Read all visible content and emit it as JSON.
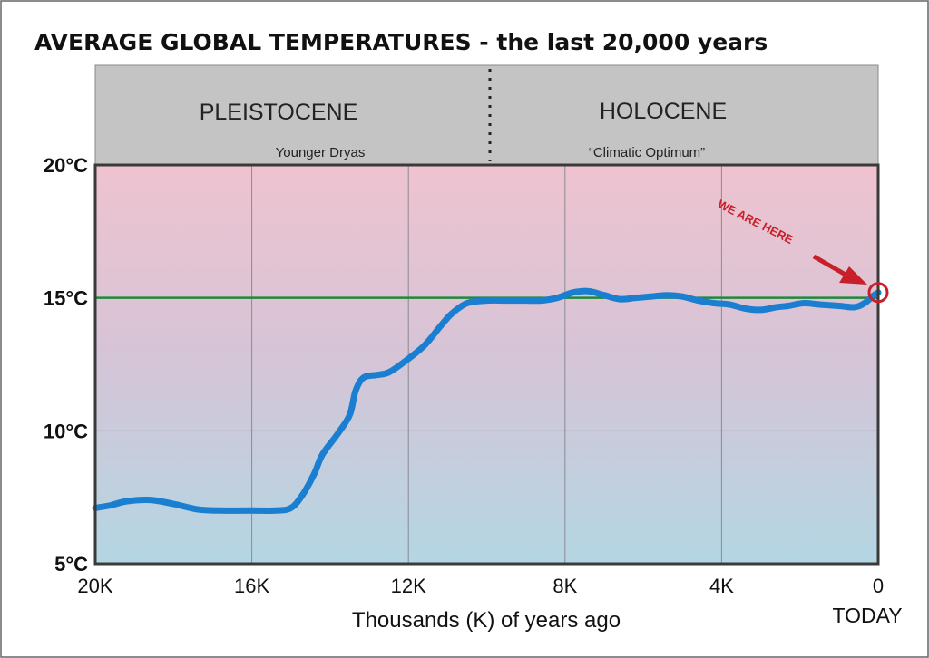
{
  "chart_data": {
    "type": "line",
    "title": "AVERAGE GLOBAL TEMPERATURES - the last 20,000 years",
    "xlabel": "Thousands (K) of years ago",
    "ylabel": "",
    "xlim": [
      20,
      0
    ],
    "ylim": [
      5,
      20
    ],
    "x_ticks": [
      20,
      16,
      12,
      8,
      4,
      0
    ],
    "x_tick_labels": [
      "20K",
      "16K",
      "12K",
      "8K",
      "4K",
      "0"
    ],
    "x_end_label": "TODAY",
    "y_ticks": [
      5,
      10,
      15,
      20
    ],
    "y_tick_labels": [
      "5°C",
      "10°C",
      "15°C",
      "20°C"
    ],
    "grid": true,
    "eras": [
      {
        "label": "PLEISTOCENE",
        "note": "Younger Dryas"
      },
      {
        "label": "HOLOCENE",
        "note": "“Climatic Optimum”"
      }
    ],
    "era_boundary_x": 10,
    "reference_line": {
      "y": 15,
      "color": "#1e8a3a"
    },
    "series": [
      {
        "color": "#1a7fd0",
        "points": [
          [
            20,
            7.1
          ],
          [
            19.6,
            7.2
          ],
          [
            19.2,
            7.35
          ],
          [
            18.6,
            7.4
          ],
          [
            18,
            7.25
          ],
          [
            17.4,
            7.05
          ],
          [
            16.8,
            7.0
          ],
          [
            16,
            7.0
          ],
          [
            15.4,
            7.0
          ],
          [
            15,
            7.1
          ],
          [
            14.7,
            7.6
          ],
          [
            14.4,
            8.4
          ],
          [
            14.2,
            9.1
          ],
          [
            13.8,
            9.9
          ],
          [
            13.5,
            10.6
          ],
          [
            13.35,
            11.5
          ],
          [
            13.15,
            12.0
          ],
          [
            12.8,
            12.1
          ],
          [
            12.5,
            12.2
          ],
          [
            12.1,
            12.6
          ],
          [
            11.6,
            13.2
          ],
          [
            11.2,
            13.9
          ],
          [
            10.9,
            14.4
          ],
          [
            10.5,
            14.8
          ],
          [
            10,
            14.9
          ],
          [
            9.5,
            14.9
          ],
          [
            9,
            14.9
          ],
          [
            8.6,
            14.9
          ],
          [
            8.2,
            15.0
          ],
          [
            7.8,
            15.2
          ],
          [
            7.4,
            15.25
          ],
          [
            7.0,
            15.1
          ],
          [
            6.6,
            14.95
          ],
          [
            6.2,
            15.0
          ],
          [
            5.8,
            15.05
          ],
          [
            5.4,
            15.1
          ],
          [
            5.0,
            15.05
          ],
          [
            4.6,
            14.9
          ],
          [
            4.2,
            14.8
          ],
          [
            3.8,
            14.75
          ],
          [
            3.4,
            14.6
          ],
          [
            3.0,
            14.55
          ],
          [
            2.6,
            14.65
          ],
          [
            2.3,
            14.7
          ],
          [
            1.9,
            14.8
          ],
          [
            1.5,
            14.75
          ],
          [
            1.0,
            14.7
          ],
          [
            0.6,
            14.65
          ],
          [
            0.35,
            14.8
          ],
          [
            0.15,
            15.05
          ],
          [
            0,
            15.2
          ]
        ]
      }
    ],
    "annotation": {
      "text": "WE ARE HERE",
      "x": 0,
      "y": 15.2,
      "color": "#c8202a"
    }
  }
}
